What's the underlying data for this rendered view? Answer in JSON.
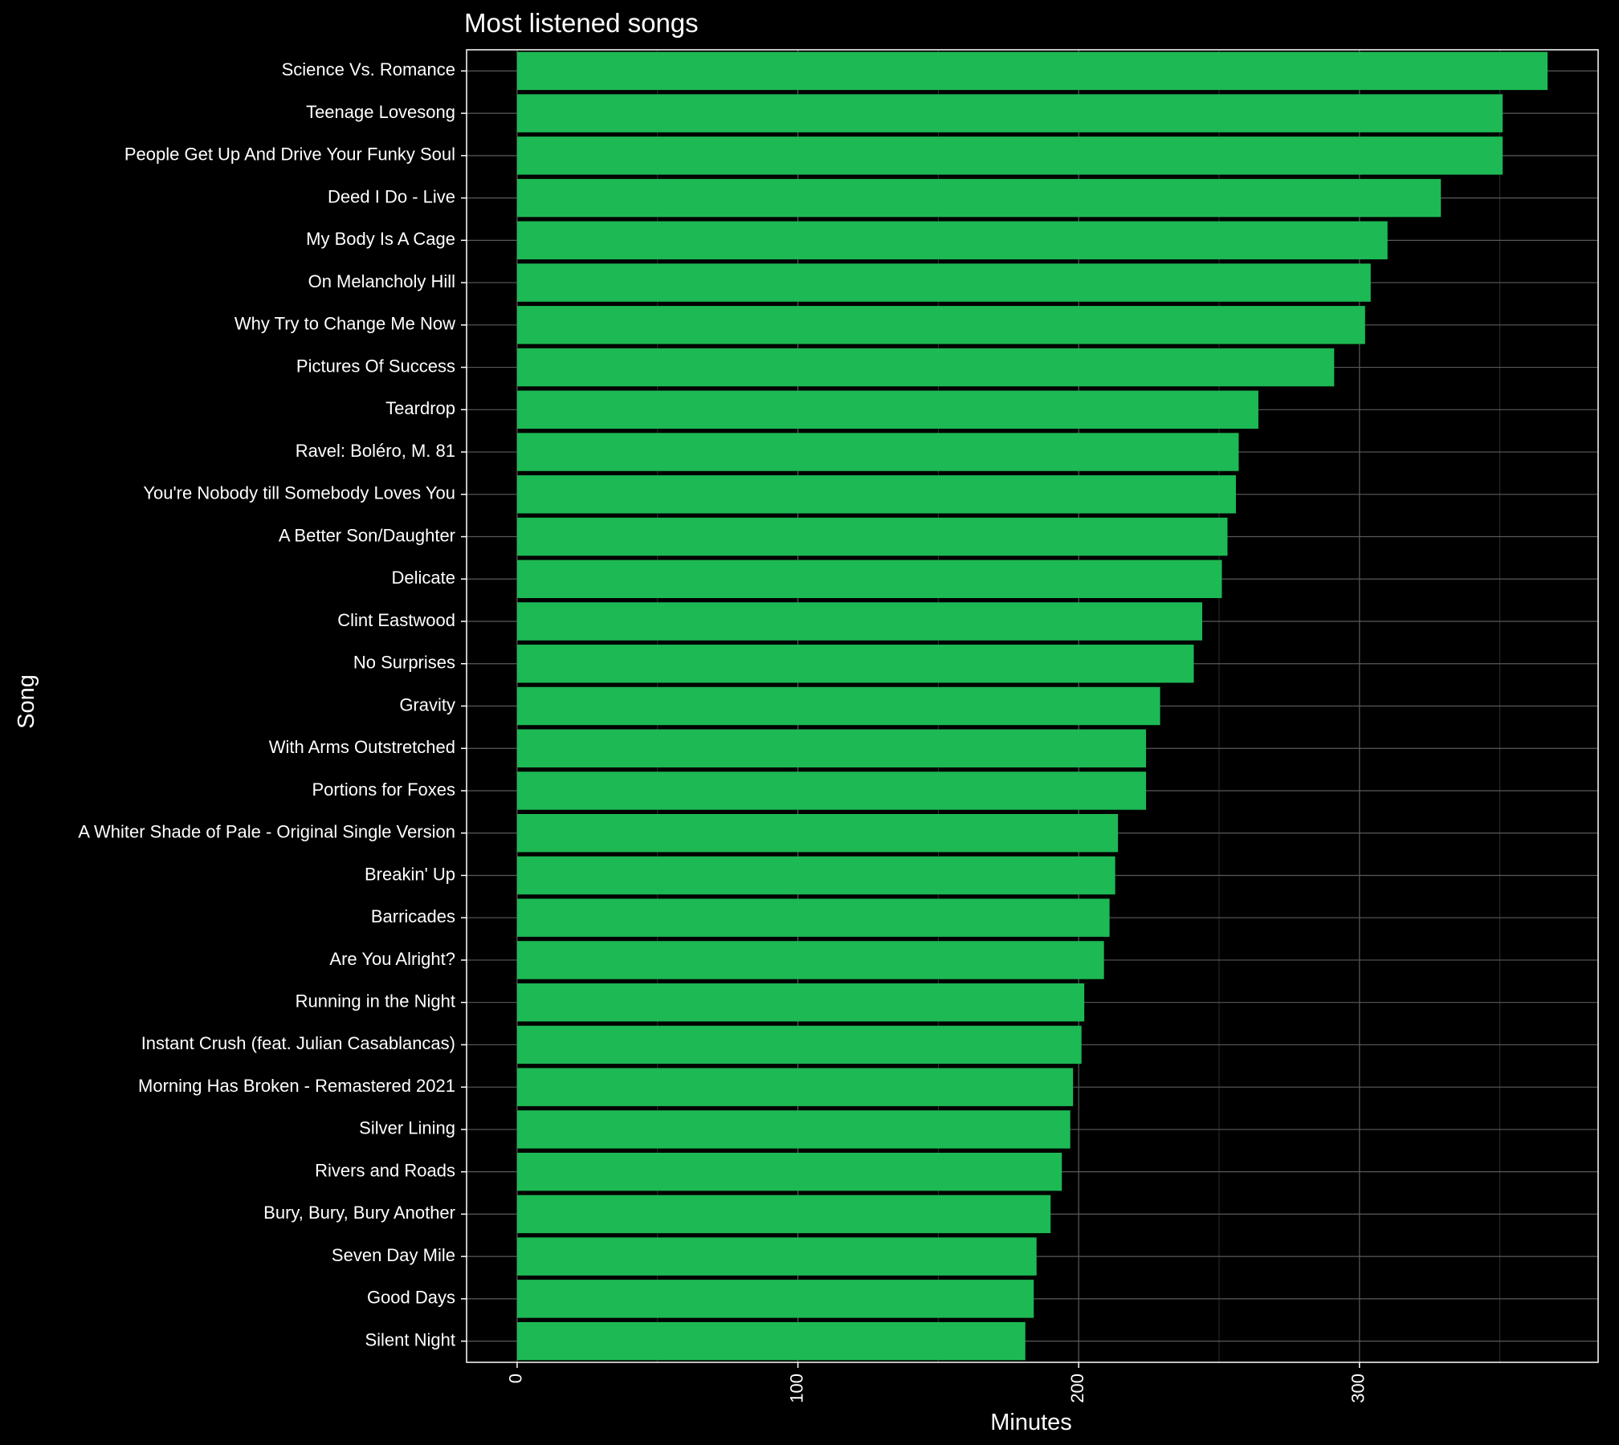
{
  "chart_data": {
    "type": "bar",
    "orientation": "horizontal",
    "title": "Most listened songs",
    "xlabel": "Minutes",
    "ylabel": "Song",
    "xlim": [
      -18,
      385
    ],
    "x_ticks": [
      0,
      100,
      200,
      300
    ],
    "bar_color": "#1db954",
    "background_color": "#000000",
    "grid": true,
    "legend": "none",
    "categories": [
      "Science Vs. Romance",
      "Teenage Lovesong",
      "People Get Up And Drive Your Funky Soul",
      "Deed I Do - Live",
      "My Body Is A Cage",
      "On Melancholy Hill",
      "Why Try to Change Me Now",
      "Pictures Of Success",
      "Teardrop",
      "Ravel: Boléro, M. 81",
      "You're Nobody till Somebody Loves You",
      "A Better Son/Daughter",
      "Delicate",
      "Clint Eastwood",
      "No Surprises",
      "Gravity",
      "With Arms Outstretched",
      "Portions for Foxes",
      "A Whiter Shade of Pale - Original Single Version",
      "Breakin' Up",
      "Barricades",
      "Are You Alright?",
      "Running in the Night",
      "Instant Crush (feat. Julian Casablancas)",
      "Morning Has Broken - Remastered 2021",
      "Silver Lining",
      "Rivers and Roads",
      "Bury, Bury, Bury Another",
      "Seven Day Mile",
      "Good Days",
      "Silent Night"
    ],
    "values": [
      367,
      351,
      351,
      329,
      310,
      304,
      302,
      291,
      264,
      257,
      256,
      253,
      251,
      244,
      241,
      229,
      224,
      224,
      214,
      213,
      211,
      209,
      202,
      201,
      198,
      197,
      194,
      190,
      185,
      184,
      181
    ]
  }
}
